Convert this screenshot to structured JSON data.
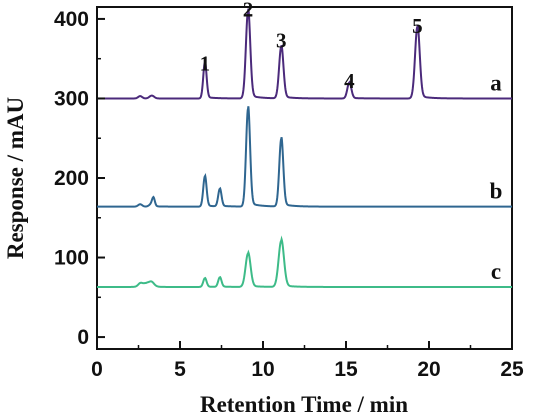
{
  "chart_data": {
    "type": "line",
    "xlabel": "Retention Time / min",
    "ylabel": "Response / mAU",
    "xlim": [
      0,
      25
    ],
    "ylim": [
      -15,
      415
    ],
    "x_ticks": [
      "0",
      "5",
      "10",
      "15",
      "20",
      "25"
    ],
    "y_ticks": [
      "0",
      "100",
      "200",
      "300",
      "400"
    ],
    "grid": false,
    "baseline_noise": [
      {
        "x": 2.6,
        "dy": 5,
        "w": 0.12
      },
      {
        "x": 3.3,
        "dy": 6,
        "w": 0.14
      }
    ],
    "series": [
      {
        "name": "a",
        "color": "#4b2a7b",
        "baseline": 300,
        "peaks": [
          {
            "x": 6.5,
            "h": 45,
            "w": 0.1
          },
          {
            "x": 9.1,
            "h": 110,
            "w": 0.13
          },
          {
            "x": 11.1,
            "h": 65,
            "w": 0.13
          },
          {
            "x": 15.2,
            "h": 20,
            "w": 0.12
          },
          {
            "x": 19.3,
            "h": 90,
            "w": 0.14
          }
        ]
      },
      {
        "name": "b",
        "color": "#2f6690",
        "baseline": 164,
        "peaks": [
          {
            "x": 3.4,
            "h": 9,
            "w": 0.08
          },
          {
            "x": 6.5,
            "h": 38,
            "w": 0.1
          },
          {
            "x": 7.4,
            "h": 22,
            "w": 0.1
          },
          {
            "x": 9.1,
            "h": 123,
            "w": 0.12
          },
          {
            "x": 11.1,
            "h": 85,
            "w": 0.12
          }
        ]
      },
      {
        "name": "c",
        "color": "#3dbb88",
        "baseline": 63,
        "peaks": [
          {
            "x": 3.0,
            "h": 5,
            "w": 0.3
          },
          {
            "x": 6.5,
            "h": 11,
            "w": 0.1
          },
          {
            "x": 7.4,
            "h": 12,
            "w": 0.1
          },
          {
            "x": 9.1,
            "h": 42,
            "w": 0.15
          },
          {
            "x": 11.1,
            "h": 58,
            "w": 0.16
          }
        ]
      }
    ],
    "peak_labels": [
      {
        "text": "1",
        "x": 6.5,
        "y": 344
      },
      {
        "text": "2",
        "x": 9.1,
        "y": 412
      },
      {
        "text": "3",
        "x": 11.1,
        "y": 373
      },
      {
        "text": "4",
        "x": 15.2,
        "y": 322
      },
      {
        "text": "5",
        "x": 19.3,
        "y": 391
      }
    ]
  }
}
